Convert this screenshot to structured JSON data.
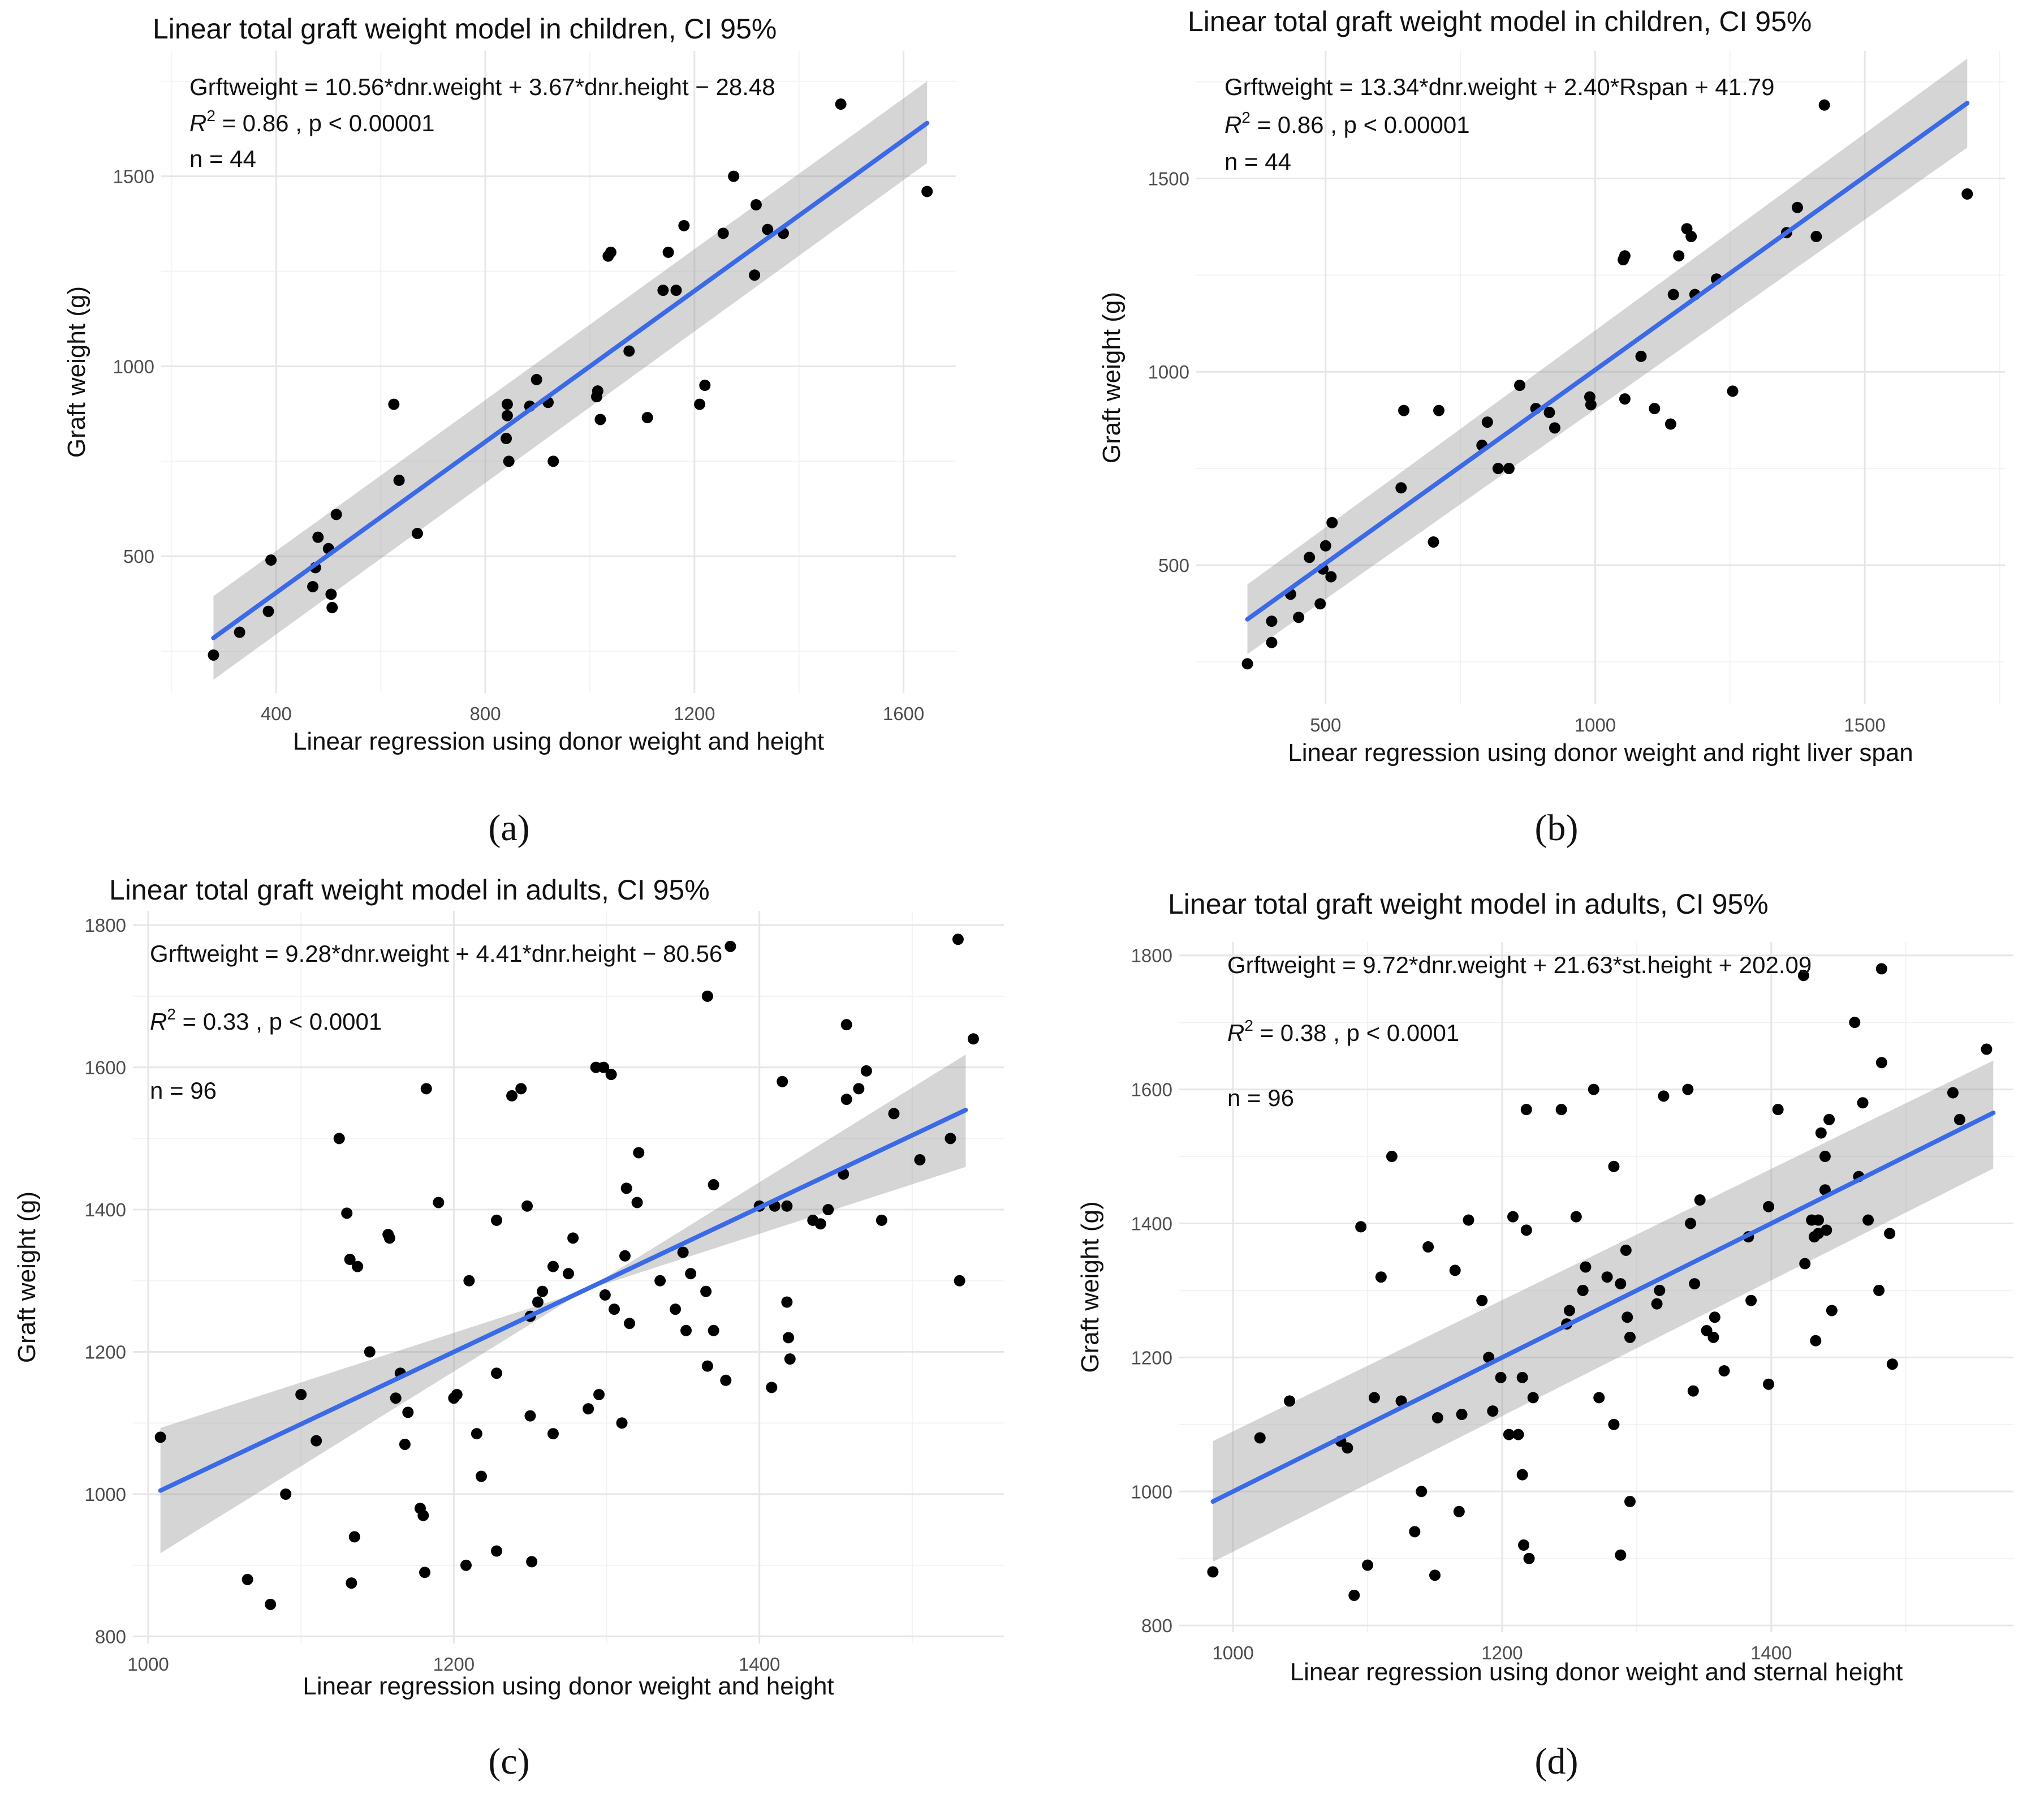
{
  "chart_data": [
    {
      "id": "a",
      "type": "scatter",
      "caption": "(a)",
      "title": "Linear total graft weight model in children, CI 95%",
      "annotations": [
        {
          "text": "Grftweight = 10.56*dnr.weight + 3.67*dnr.height − 28.48"
        },
        {
          "r2": "0.86",
          "p": "p < 0.00001"
        },
        {
          "text": "n = 44"
        }
      ],
      "xlabel": "Linear regression using donor weight and height",
      "ylabel": "Graft weight (g)",
      "xlim": [
        180,
        1700
      ],
      "ylim": [
        140,
        1830
      ],
      "xticks": [
        400,
        800,
        1200,
        1600
      ],
      "yticks": [
        500,
        1000,
        1500
      ],
      "fit": {
        "x": [
          280,
          1645
        ],
        "y": [
          285,
          1640
        ],
        "ci_start": [
          175,
          395
        ],
        "ci_end": [
          1535,
          1750
        ]
      },
      "points": [
        [
          280,
          240
        ],
        [
          330,
          300
        ],
        [
          385,
          355
        ],
        [
          390,
          490
        ],
        [
          470,
          420
        ],
        [
          475,
          470
        ],
        [
          480,
          550
        ],
        [
          500,
          520
        ],
        [
          505,
          400
        ],
        [
          507,
          365
        ],
        [
          515,
          610
        ],
        [
          625,
          900
        ],
        [
          635,
          700
        ],
        [
          670,
          560
        ],
        [
          840,
          810
        ],
        [
          842,
          870
        ],
        [
          842,
          900
        ],
        [
          845,
          750
        ],
        [
          885,
          895
        ],
        [
          898,
          965
        ],
        [
          920,
          905
        ],
        [
          930,
          750
        ],
        [
          1013,
          920
        ],
        [
          1015,
          935
        ],
        [
          1020,
          860
        ],
        [
          1035,
          1290
        ],
        [
          1040,
          1300
        ],
        [
          1075,
          1040
        ],
        [
          1110,
          865
        ],
        [
          1140,
          1200
        ],
        [
          1150,
          1300
        ],
        [
          1165,
          1200
        ],
        [
          1180,
          1370
        ],
        [
          1210,
          900
        ],
        [
          1220,
          950
        ],
        [
          1255,
          1350
        ],
        [
          1275,
          1500
        ],
        [
          1315,
          1240
        ],
        [
          1318,
          1425
        ],
        [
          1340,
          1360
        ],
        [
          1370,
          1350
        ],
        [
          1480,
          1690
        ],
        [
          1645,
          1460
        ]
      ]
    },
    {
      "id": "b",
      "type": "scatter",
      "caption": "(b)",
      "title": "Linear total graft weight model in children, CI 95%",
      "annotations": [
        {
          "text": "Grftweight = 13.34*dnr.weight + 2.40*Rspan + 41.79"
        },
        {
          "r2": "0.86",
          "p": "p < 0.00001"
        },
        {
          "text": "n = 44"
        }
      ],
      "xlabel": "Linear regression using donor weight and right liver span",
      "ylabel": "Graft weight (g)",
      "xlim": [
        260,
        1760
      ],
      "ylim": [
        140,
        1830
      ],
      "xticks": [
        500,
        1000,
        1500
      ],
      "yticks": [
        500,
        1000,
        1500
      ],
      "fit": {
        "x": [
          355,
          1690
        ],
        "y": [
          360,
          1695
        ],
        "ci_start": [
          270,
          450
        ],
        "ci_end": [
          1580,
          1810
        ]
      },
      "points": [
        [
          355,
          245
        ],
        [
          400,
          300
        ],
        [
          400,
          355
        ],
        [
          435,
          425
        ],
        [
          450,
          365
        ],
        [
          470,
          520
        ],
        [
          490,
          400
        ],
        [
          495,
          490
        ],
        [
          500,
          550
        ],
        [
          510,
          470
        ],
        [
          512,
          610
        ],
        [
          640,
          700
        ],
        [
          645,
          900
        ],
        [
          710,
          900
        ],
        [
          700,
          560
        ],
        [
          790,
          810
        ],
        [
          800,
          870
        ],
        [
          820,
          750
        ],
        [
          840,
          750
        ],
        [
          860,
          965
        ],
        [
          890,
          905
        ],
        [
          915,
          895
        ],
        [
          925,
          855
        ],
        [
          990,
          935
        ],
        [
          992,
          915
        ],
        [
          1052,
          1290
        ],
        [
          1055,
          1300
        ],
        [
          1055,
          930
        ],
        [
          1085,
          1040
        ],
        [
          1110,
          905
        ],
        [
          1140,
          865
        ],
        [
          1145,
          1200
        ],
        [
          1155,
          1300
        ],
        [
          1170,
          1370
        ],
        [
          1178,
          1350
        ],
        [
          1185,
          1200
        ],
        [
          1225,
          1240
        ],
        [
          1255,
          950
        ],
        [
          1355,
          1360
        ],
        [
          1375,
          1425
        ],
        [
          1410,
          1350
        ],
        [
          1425,
          1690
        ],
        [
          1690,
          1460
        ]
      ]
    },
    {
      "id": "c",
      "type": "scatter",
      "caption": "(c)",
      "title": "Linear total graft weight model in adults, CI 95%",
      "annotations": [
        {
          "text": "Grftweight = 9.28*dnr.weight + 4.41*dnr.height − 80.56"
        },
        {
          "r2": "0.33",
          "p": "p < 0.0001"
        },
        {
          "text": "n = 96"
        }
      ],
      "xlabel": "Linear regression using donor weight and height",
      "ylabel": "Graft weight (g)",
      "xlim": [
        990,
        1560
      ],
      "ylim": [
        790,
        1820
      ],
      "xticks": [
        1000,
        1200,
        1400
      ],
      "yticks": [
        800,
        1000,
        1200,
        1400,
        1600,
        1800
      ],
      "fit": {
        "x": [
          1008,
          1535
        ],
        "y": [
          1005,
          1540
        ],
        "ci_start": [
          917,
          1093
        ],
        "ci_end": [
          1618,
          1460
        ]
      },
      "points": [
        [
          1008,
          1080
        ],
        [
          1065,
          880
        ],
        [
          1080,
          845
        ],
        [
          1090,
          1000
        ],
        [
          1100,
          1140
        ],
        [
          1110,
          1075
        ],
        [
          1125,
          1500
        ],
        [
          1130,
          1395
        ],
        [
          1132,
          1330
        ],
        [
          1133,
          875
        ],
        [
          1135,
          940
        ],
        [
          1137,
          1320
        ],
        [
          1145,
          1200
        ],
        [
          1157,
          1365
        ],
        [
          1158,
          1360
        ],
        [
          1162,
          1135
        ],
        [
          1165,
          1170
        ],
        [
          1168,
          1070
        ],
        [
          1170,
          1115
        ],
        [
          1178,
          980
        ],
        [
          1180,
          970
        ],
        [
          1181,
          890
        ],
        [
          1182,
          1570
        ],
        [
          1190,
          1410
        ],
        [
          1200,
          1135
        ],
        [
          1202,
          1140
        ],
        [
          1208,
          900
        ],
        [
          1210,
          1300
        ],
        [
          1215,
          1085
        ],
        [
          1218,
          1025
        ],
        [
          1228,
          1170
        ],
        [
          1228,
          1385
        ],
        [
          1228,
          920
        ],
        [
          1238,
          1560
        ],
        [
          1244,
          1570
        ],
        [
          1248,
          1405
        ],
        [
          1250,
          1110
        ],
        [
          1250,
          1250
        ],
        [
          1251,
          905
        ],
        [
          1255,
          1270
        ],
        [
          1258,
          1285
        ],
        [
          1265,
          1085
        ],
        [
          1265,
          1320
        ],
        [
          1275,
          1310
        ],
        [
          1278,
          1360
        ],
        [
          1288,
          1120
        ],
        [
          1293,
          1600
        ],
        [
          1295,
          1140
        ],
        [
          1298,
          1600
        ],
        [
          1299,
          1280
        ],
        [
          1303,
          1590
        ],
        [
          1305,
          1260
        ],
        [
          1310,
          1100
        ],
        [
          1312,
          1335
        ],
        [
          1313,
          1430
        ],
        [
          1315,
          1240
        ],
        [
          1320,
          1410
        ],
        [
          1321,
          1480
        ],
        [
          1335,
          1300
        ],
        [
          1345,
          1260
        ],
        [
          1350,
          1340
        ],
        [
          1352,
          1230
        ],
        [
          1355,
          1310
        ],
        [
          1365,
          1285
        ],
        [
          1366,
          1180
        ],
        [
          1366,
          1700
        ],
        [
          1370,
          1230
        ],
        [
          1370,
          1435
        ],
        [
          1378,
          1160
        ],
        [
          1381,
          1770
        ],
        [
          1400,
          1405
        ],
        [
          1408,
          1150
        ],
        [
          1410,
          1405
        ],
        [
          1415,
          1580
        ],
        [
          1418,
          1405
        ],
        [
          1418,
          1270
        ],
        [
          1419,
          1220
        ],
        [
          1420,
          1190
        ],
        [
          1435,
          1385
        ],
        [
          1440,
          1380
        ],
        [
          1445,
          1400
        ],
        [
          1455,
          1450
        ],
        [
          1457,
          1555
        ],
        [
          1457,
          1660
        ],
        [
          1465,
          1570
        ],
        [
          1470,
          1595
        ],
        [
          1480,
          1385
        ],
        [
          1488,
          1535
        ],
        [
          1505,
          1470
        ],
        [
          1525,
          1500
        ],
        [
          1530,
          1780
        ],
        [
          1531,
          1300
        ],
        [
          1540,
          1640
        ]
      ]
    },
    {
      "id": "d",
      "type": "scatter",
      "caption": "(d)",
      "title": "Linear total graft weight model in adults, CI 95%",
      "annotations": [
        {
          "text": "Grftweight = 9.72*dnr.weight + 21.63*st.height + 202.09"
        },
        {
          "r2": "0.38",
          "p": "p < 0.0001"
        },
        {
          "text": "n = 96"
        }
      ],
      "xlabel": "Linear regression using donor weight and sternal height",
      "ylabel": "Graft weight (g)",
      "xlim": [
        960,
        1580
      ],
      "ylim": [
        790,
        1820
      ],
      "xticks": [
        1000,
        1200,
        1400
      ],
      "yticks": [
        800,
        1000,
        1200,
        1400,
        1600,
        1800
      ],
      "fit": {
        "x": [
          985,
          1565
        ],
        "y": [
          985,
          1565
        ],
        "ci_start": [
          895,
          1075
        ],
        "ci_end": [
          1482,
          1643
        ]
      },
      "points": [
        [
          985,
          880
        ],
        [
          1020,
          1080
        ],
        [
          1042,
          1135
        ],
        [
          1080,
          1075
        ],
        [
          1085,
          1065
        ],
        [
          1090,
          845
        ],
        [
          1095,
          1395
        ],
        [
          1100,
          890
        ],
        [
          1105,
          1140
        ],
        [
          1110,
          1320
        ],
        [
          1118,
          1500
        ],
        [
          1125,
          1135
        ],
        [
          1135,
          940
        ],
        [
          1140,
          1000
        ],
        [
          1145,
          1365
        ],
        [
          1150,
          875
        ],
        [
          1152,
          1110
        ],
        [
          1165,
          1330
        ],
        [
          1168,
          970
        ],
        [
          1170,
          1115
        ],
        [
          1175,
          1405
        ],
        [
          1185,
          1285
        ],
        [
          1190,
          1200
        ],
        [
          1193,
          1120
        ],
        [
          1199,
          1170
        ],
        [
          1205,
          1085
        ],
        [
          1208,
          1410
        ],
        [
          1212,
          1085
        ],
        [
          1215,
          1025
        ],
        [
          1215,
          1170
        ],
        [
          1216,
          920
        ],
        [
          1218,
          1390
        ],
        [
          1218,
          1570
        ],
        [
          1220,
          900
        ],
        [
          1223,
          1140
        ],
        [
          1244,
          1570
        ],
        [
          1248,
          1250
        ],
        [
          1250,
          1270
        ],
        [
          1255,
          1410
        ],
        [
          1260,
          1300
        ],
        [
          1262,
          1335
        ],
        [
          1268,
          1600
        ],
        [
          1272,
          1140
        ],
        [
          1278,
          1320
        ],
        [
          1283,
          1100
        ],
        [
          1283,
          1485
        ],
        [
          1288,
          1310
        ],
        [
          1288,
          905
        ],
        [
          1292,
          1360
        ],
        [
          1293,
          1260
        ],
        [
          1295,
          1230
        ],
        [
          1295,
          985
        ],
        [
          1315,
          1280
        ],
        [
          1317,
          1300
        ],
        [
          1320,
          1590
        ],
        [
          1338,
          1600
        ],
        [
          1340,
          1400
        ],
        [
          1342,
          1150
        ],
        [
          1343,
          1310
        ],
        [
          1347,
          1435
        ],
        [
          1352,
          1240
        ],
        [
          1357,
          1230
        ],
        [
          1358,
          1260
        ],
        [
          1365,
          1180
        ],
        [
          1383,
          1380
        ],
        [
          1385,
          1285
        ],
        [
          1398,
          1160
        ],
        [
          1398,
          1425
        ],
        [
          1405,
          1570
        ],
        [
          1424,
          1770
        ],
        [
          1425,
          1340
        ],
        [
          1430,
          1405
        ],
        [
          1432,
          1380
        ],
        [
          1433,
          1225
        ],
        [
          1435,
          1385
        ],
        [
          1435,
          1405
        ],
        [
          1437,
          1535
        ],
        [
          1440,
          1450
        ],
        [
          1440,
          1500
        ],
        [
          1441,
          1390
        ],
        [
          1443,
          1555
        ],
        [
          1445,
          1270
        ],
        [
          1462,
          1700
        ],
        [
          1465,
          1470
        ],
        [
          1468,
          1580
        ],
        [
          1472,
          1405
        ],
        [
          1480,
          1300
        ],
        [
          1482,
          1640
        ],
        [
          1482,
          1780
        ],
        [
          1488,
          1385
        ],
        [
          1490,
          1190
        ],
        [
          1535,
          1595
        ],
        [
          1540,
          1555
        ],
        [
          1560,
          1660
        ]
      ]
    }
  ]
}
